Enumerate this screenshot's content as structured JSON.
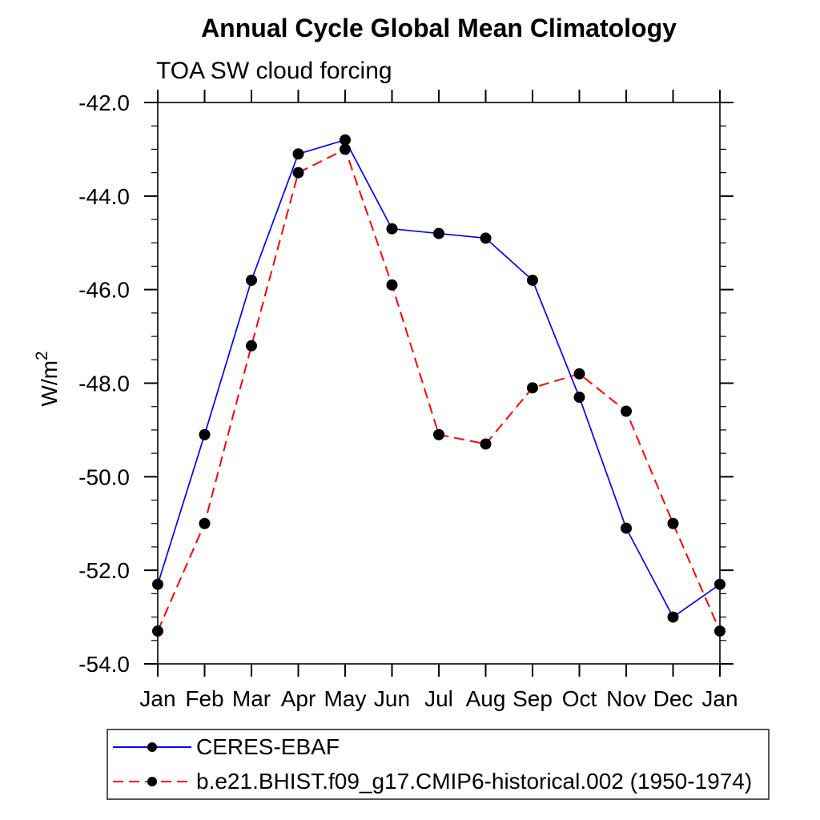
{
  "title": "Annual Cycle Global Mean Climatology",
  "subtitle": "TOA SW cloud forcing",
  "chart_data": {
    "type": "line",
    "categories": [
      "Jan",
      "Feb",
      "Mar",
      "Apr",
      "May",
      "Jun",
      "Jul",
      "Aug",
      "Sep",
      "Oct",
      "Nov",
      "Dec",
      "Jan"
    ],
    "series": [
      {
        "name": "CERES-EBAF",
        "color": "#0000ff",
        "line_style": "solid",
        "marker": "filled-circle",
        "marker_color": "#000000",
        "values": [
          -52.3,
          -49.1,
          -45.8,
          -43.1,
          -42.8,
          -44.7,
          -44.8,
          -44.9,
          -45.8,
          -48.3,
          -51.1,
          -53.0,
          -52.3
        ]
      },
      {
        "name": "b.e21.BHIST.f09_g17.CMIP6-historical.002 (1950-1974)",
        "color": "#ff0000",
        "line_style": "dashed",
        "marker": "filled-circle",
        "marker_color": "#000000",
        "values": [
          -53.3,
          -51.0,
          -47.2,
          -43.5,
          -43.0,
          -45.9,
          -49.1,
          -49.3,
          -48.1,
          -47.8,
          -48.6,
          -51.0,
          -53.3
        ]
      }
    ],
    "ylabel": "W/m²",
    "ylim": [
      -54.0,
      -42.0
    ],
    "ytick_step": 2.0,
    "yminor_step": 0.5,
    "ytick_labels": [
      "-42.0",
      "-44.0",
      "-46.0",
      "-48.0",
      "-50.0",
      "-52.0",
      "-54.0"
    ],
    "xtick_labels": [
      "Jan",
      "Feb",
      "Mar",
      "Apr",
      "May",
      "Jun",
      "Jul",
      "Aug",
      "Sep",
      "Oct",
      "Nov",
      "Dec",
      "Jan"
    ],
    "grid": false,
    "legend_position": "bottom",
    "axis_color": "#000000"
  }
}
